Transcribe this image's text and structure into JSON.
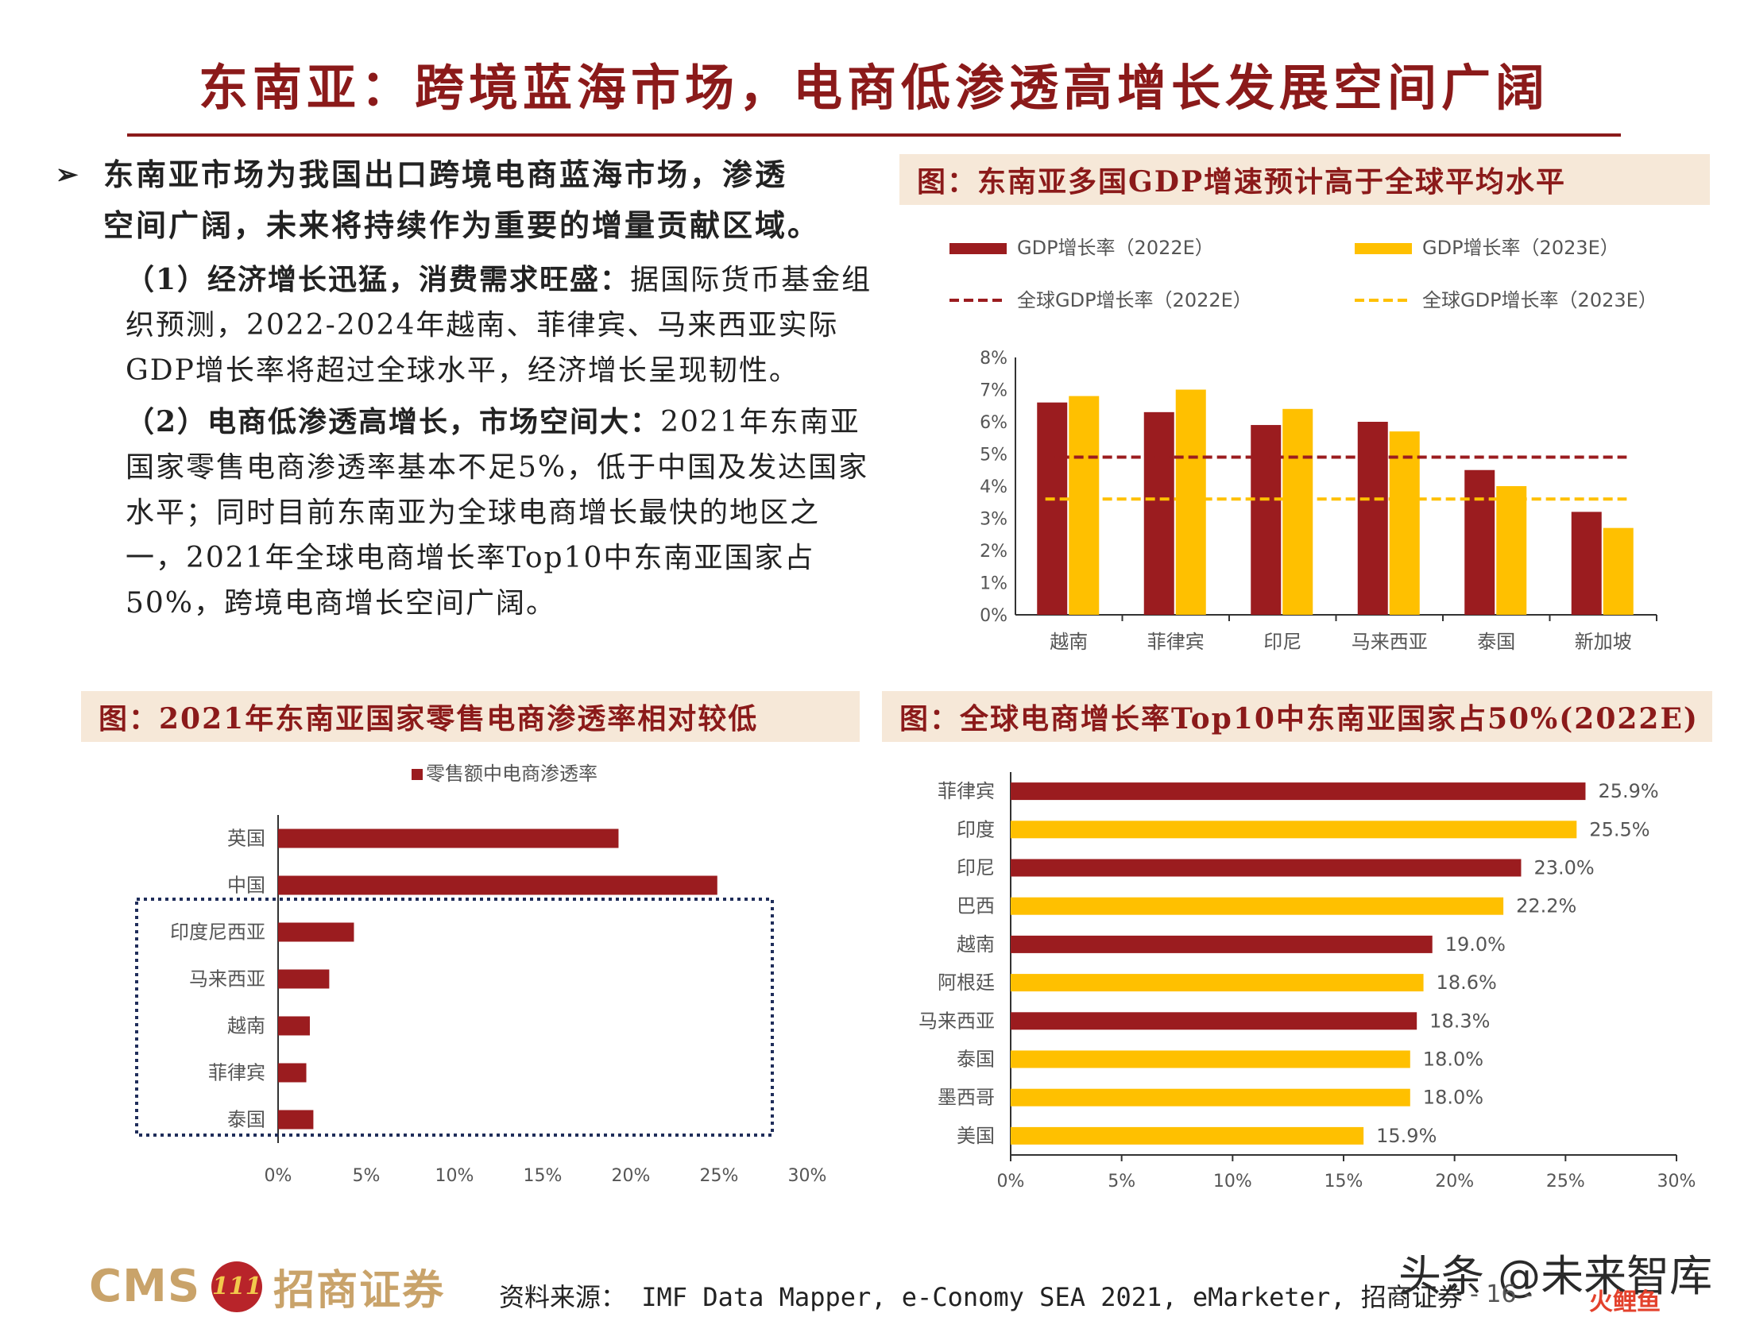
{
  "title": "东南亚：跨境蓝海市场，电商低渗透高增长发展空间广阔",
  "bullet": {
    "mark": "➢",
    "line1": "东南亚市场为我国出口跨境电商蓝海市场，渗透",
    "line2": "空间广阔，未来将持续作为重要的增量贡献区域。"
  },
  "points": [
    {
      "heading": "（1）经济增长迅猛，消费需求旺盛：",
      "body": "据国际货币基金组织预测，2022-2024年越南、菲律宾、马来西亚实际GDP增长率将超过全球水平，经济增长呈现韧性。"
    },
    {
      "heading": "（2）电商低渗透高增长，市场空间大：",
      "body": "2021年东南亚国家零售电商渗透率基本不足5%，低于中国及发达国家水平；同时目前东南亚为全球电商增长最快的地区之一，2021年全球电商增长率Top10中东南亚国家占50%，跨境电商增长空间广阔。"
    }
  ],
  "captions": {
    "gdp": "图：东南亚多国GDP增速预计高于全球平均水平",
    "penetration": "图：2021年东南亚国家零售电商渗透率相对较低",
    "growth": "图：全球电商增长率Top10中东南亚国家占50%(2022E)"
  },
  "colors": {
    "red": "#9b1c1f",
    "yellow": "#ffc000",
    "caption_bg": "#f6e8d8",
    "title": "#8b1a1a"
  },
  "chart_data": [
    {
      "type": "bar",
      "categories": [
        "越南",
        "菲律宾",
        "印尼",
        "马来西亚",
        "泰国",
        "新加坡"
      ],
      "series": [
        {
          "name": "GDP增长率（2022E）",
          "values": [
            6.6,
            6.3,
            5.9,
            6.0,
            4.5,
            3.2
          ]
        },
        {
          "name": "GDP增长率（2023E）",
          "values": [
            6.8,
            7.0,
            6.4,
            5.7,
            4.0,
            2.7
          ]
        }
      ],
      "reference_lines": [
        {
          "name": "全球GDP增长率（2022E）",
          "value": 4.9
        },
        {
          "name": "全球GDP增长率（2023E）",
          "value": 3.6
        }
      ],
      "ylim": [
        0,
        8
      ],
      "yticks": [
        "0%",
        "1%",
        "2%",
        "3%",
        "4%",
        "5%",
        "6%",
        "7%",
        "8%"
      ]
    },
    {
      "type": "bar",
      "orientation": "horizontal",
      "legend": "零售额中电商渗透率",
      "categories": [
        "英国",
        "中国",
        "印度尼西亚",
        "马来西亚",
        "越南",
        "菲律宾",
        "泰国"
      ],
      "values": [
        19.3,
        24.9,
        4.3,
        2.9,
        1.8,
        1.6,
        2.0
      ],
      "xlim": [
        0,
        30
      ],
      "xticks": [
        "0%",
        "5%",
        "10%",
        "15%",
        "20%",
        "25%",
        "30%"
      ]
    },
    {
      "type": "bar",
      "orientation": "horizontal",
      "categories": [
        "菲律宾",
        "印度",
        "印尼",
        "巴西",
        "越南",
        "阿根廷",
        "马来西亚",
        "泰国",
        "墨西哥",
        "美国"
      ],
      "values": [
        25.9,
        25.5,
        23.0,
        22.2,
        19.0,
        18.6,
        18.3,
        18.0,
        18.0,
        15.9
      ],
      "labels": [
        "25.9%",
        "25.5%",
        "23.0%",
        "22.2%",
        "19.0%",
        "18.6%",
        "18.3%",
        "18.0%",
        "18.0%",
        "15.9%"
      ],
      "highlight": [
        true,
        false,
        true,
        false,
        true,
        false,
        true,
        false,
        false,
        false
      ],
      "xlim": [
        0,
        30
      ],
      "xticks": [
        "0%",
        "5%",
        "10%",
        "15%",
        "20%",
        "25%",
        "30%"
      ]
    }
  ],
  "footer": {
    "brand_en": "CMS",
    "logo_mark": "111",
    "brand_cn": "招商证券",
    "source": "资料来源： IMF Data Mapper, e-Conomy SEA 2021, eMarketer, 招商证券",
    "watermark": "头条 @未来智库",
    "page": "- 16 -",
    "corner": "火鲤鱼"
  }
}
